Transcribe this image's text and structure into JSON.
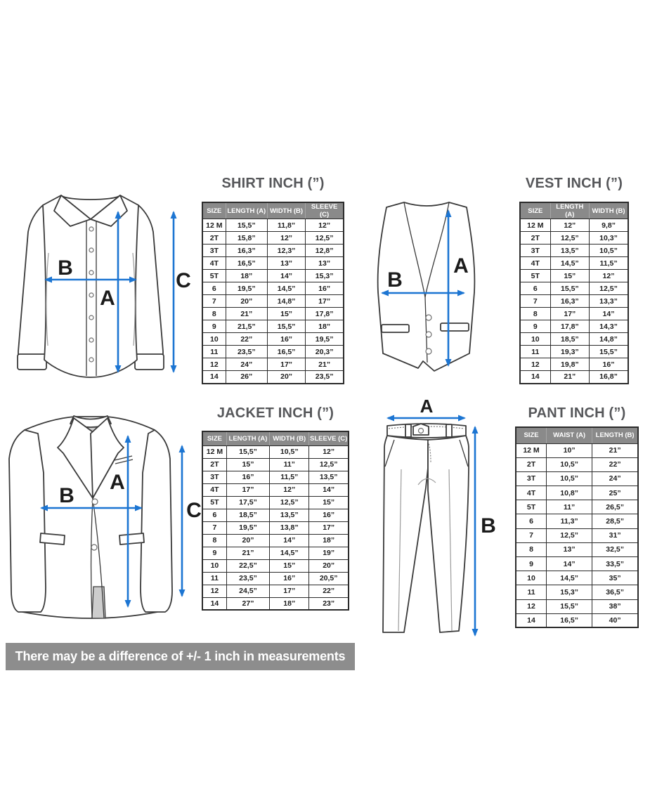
{
  "colors": {
    "arrow_blue": "#1c75d2",
    "table_header_gray": "#8a8a8a",
    "banner_gray": "#8d8d8d",
    "table_border": "#2b2b2b",
    "title_gray": "#56575a"
  },
  "figure_labels": {
    "a": "A",
    "b": "B",
    "c": "C"
  },
  "tables": {
    "shirt": {
      "title": "SHIRT INCH (”)",
      "columns": [
        "SIZE",
        "LENGTH (A)",
        "WIDTH (B)",
        "SLEEVE (C)"
      ],
      "rows": [
        [
          "12 M",
          "15,5”",
          "11,8”",
          "12”"
        ],
        [
          "2T",
          "15,8”",
          "12”",
          "12,5”"
        ],
        [
          "3T",
          "16,3”",
          "12,3”",
          "12,8”"
        ],
        [
          "4T",
          "16,5”",
          "13”",
          "13”"
        ],
        [
          "5T",
          "18”",
          "14”",
          "15,3”"
        ],
        [
          "6",
          "19,5”",
          "14,5”",
          "16”"
        ],
        [
          "7",
          "20”",
          "14,8”",
          "17”"
        ],
        [
          "8",
          "21”",
          "15”",
          "17,8”"
        ],
        [
          "9",
          "21,5”",
          "15,5”",
          "18”"
        ],
        [
          "10",
          "22”",
          "16”",
          "19,5”"
        ],
        [
          "11",
          "23,5”",
          "16,5”",
          "20,3”"
        ],
        [
          "12",
          "24”",
          "17”",
          "21”"
        ],
        [
          "14",
          "26”",
          "20”",
          "23,5”"
        ]
      ]
    },
    "vest": {
      "title": "VEST INCH (”)",
      "columns": [
        "SIZE",
        "LENGTH (A)",
        "WIDTH (B)"
      ],
      "rows": [
        [
          "12 M",
          "12”",
          "9,8”"
        ],
        [
          "2T",
          "12,5”",
          "10,3”"
        ],
        [
          "3T",
          "13,5”",
          "10,5”"
        ],
        [
          "4T",
          "14,5”",
          "11,5”"
        ],
        [
          "5T",
          "15”",
          "12”"
        ],
        [
          "6",
          "15,5”",
          "12,5”"
        ],
        [
          "7",
          "16,3”",
          "13,3”"
        ],
        [
          "8",
          "17”",
          "14”"
        ],
        [
          "9",
          "17,8”",
          "14,3”"
        ],
        [
          "10",
          "18,5”",
          "14,8”"
        ],
        [
          "11",
          "19,3”",
          "15,5”"
        ],
        [
          "12",
          "19,8”",
          "16”"
        ],
        [
          "14",
          "21”",
          "16,8”"
        ]
      ]
    },
    "jacket": {
      "title": "JACKET INCH (”)",
      "columns": [
        "SIZE",
        "LENGTH (A)",
        "WIDTH (B)",
        "SLEEVE (C)"
      ],
      "rows": [
        [
          "12 M",
          "15,5”",
          "10,5”",
          "12”"
        ],
        [
          "2T",
          "15”",
          "11”",
          "12,5”"
        ],
        [
          "3T",
          "16”",
          "11,5”",
          "13,5”"
        ],
        [
          "4T",
          "17”",
          "12”",
          "14”"
        ],
        [
          "5T",
          "17,5”",
          "12,5”",
          "15”"
        ],
        [
          "6",
          "18,5”",
          "13,5”",
          "16”"
        ],
        [
          "7",
          "19,5”",
          "13,8”",
          "17”"
        ],
        [
          "8",
          "20”",
          "14”",
          "18”"
        ],
        [
          "9",
          "21”",
          "14,5”",
          "19”"
        ],
        [
          "10",
          "22,5”",
          "15”",
          "20”"
        ],
        [
          "11",
          "23,5”",
          "16”",
          "20,5”"
        ],
        [
          "12",
          "24,5”",
          "17”",
          "22”"
        ],
        [
          "14",
          "27”",
          "18”",
          "23”"
        ]
      ]
    },
    "pant": {
      "title": "PANT INCH (”)",
      "columns": [
        "SIZE",
        "WAIST (A)",
        "LENGTH (B)"
      ],
      "rows": [
        [
          "12 M",
          "10”",
          "21”"
        ],
        [
          "2T",
          "10,5”",
          "22”"
        ],
        [
          "3T",
          "10,5”",
          "24”"
        ],
        [
          "4T",
          "10,8”",
          "25”"
        ],
        [
          "5T",
          "11”",
          "26,5”"
        ],
        [
          "6",
          "11,3”",
          "28,5”"
        ],
        [
          "7",
          "12,5”",
          "31”"
        ],
        [
          "8",
          "13”",
          "32,5”"
        ],
        [
          "9",
          "14”",
          "33,5”"
        ],
        [
          "10",
          "14,5”",
          "35”"
        ],
        [
          "11",
          "15,3”",
          "36,5”"
        ],
        [
          "12",
          "15,5”",
          "38”"
        ],
        [
          "14",
          "16,5”",
          "40”"
        ]
      ]
    }
  },
  "banner": {
    "text": "There may be a difference of +/- 1 inch in measurements"
  }
}
